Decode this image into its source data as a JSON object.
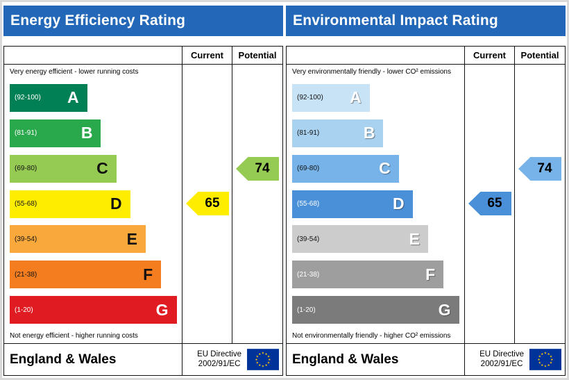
{
  "chart_data": [
    {
      "type": "bar",
      "title": "Energy Efficiency Rating",
      "categories": [
        "A",
        "B",
        "C",
        "D",
        "E",
        "F",
        "G"
      ],
      "band_ranges": [
        "92-100",
        "81-91",
        "69-80",
        "55-68",
        "39-54",
        "21-38",
        "1-20"
      ],
      "values": [
        45,
        53,
        62,
        70,
        79,
        88,
        97
      ],
      "current": 65,
      "potential": 74,
      "current_band": "D",
      "potential_band": "C",
      "xlabel": "",
      "ylabel": "",
      "legend": [
        "Current",
        "Potential"
      ]
    },
    {
      "type": "bar",
      "title": "Environmental Impact Rating",
      "categories": [
        "A",
        "B",
        "C",
        "D",
        "E",
        "F",
        "G"
      ],
      "band_ranges": [
        "92-100",
        "81-91",
        "69-80",
        "55-68",
        "39-54",
        "21-38",
        "1-20"
      ],
      "values": [
        45,
        53,
        62,
        70,
        79,
        88,
        97
      ],
      "current": 65,
      "potential": 74,
      "current_band": "D",
      "potential_band": "C",
      "xlabel": "",
      "ylabel": "",
      "legend": [
        "Current",
        "Potential"
      ]
    }
  ],
  "colors": {
    "header_bg": "#2368b8",
    "header_text": "#ffffff",
    "flag_bg": "#003399",
    "flag_star": "#ffcc00",
    "border": "#111111"
  },
  "panels": [
    {
      "title": "Energy Efficiency Rating",
      "col_current": "Current",
      "col_potential": "Potential",
      "caption_top": "Very energy efficient - lower running costs",
      "caption_bottom": "Not energy efficient - higher running costs",
      "bands": [
        {
          "letter": "A",
          "range": "(92-100)",
          "color": "#008054",
          "range_color": "#ffffff",
          "letter_color": "#ffffff",
          "width_pct": 45
        },
        {
          "letter": "B",
          "range": "(81-91)",
          "color": "#2aa84c",
          "range_color": "#ffffff",
          "letter_color": "#ffffff",
          "width_pct": 53
        },
        {
          "letter": "C",
          "range": "(69-80)",
          "color": "#95ca53",
          "range_color": "#111111",
          "letter_color": "#111111",
          "width_pct": 62
        },
        {
          "letter": "D",
          "range": "(55-68)",
          "color": "#ffed00",
          "range_color": "#111111",
          "letter_color": "#111111",
          "width_pct": 70
        },
        {
          "letter": "E",
          "range": "(39-54)",
          "color": "#f9a93c",
          "range_color": "#111111",
          "letter_color": "#111111",
          "width_pct": 79
        },
        {
          "letter": "F",
          "range": "(21-38)",
          "color": "#f47d20",
          "range_color": "#111111",
          "letter_color": "#111111",
          "width_pct": 88
        },
        {
          "letter": "G",
          "range": "(1-20)",
          "color": "#e01b22",
          "range_color": "#ffffff",
          "letter_color": "#ffffff",
          "width_pct": 97
        }
      ],
      "current": {
        "value": "65",
        "color": "#ffed00"
      },
      "potential": {
        "value": "74",
        "color": "#95ca53"
      },
      "footer": {
        "region": "England & Wales",
        "directive_line1": "EU Directive",
        "directive_line2": "2002/91/EC"
      }
    },
    {
      "title": "Environmental Impact Rating",
      "col_current": "Current",
      "col_potential": "Potential",
      "caption_top": "Very environmentally friendly - lower CO² emissions",
      "caption_bottom": "Not environmentally friendly - higher CO² emissions",
      "bands": [
        {
          "letter": "A",
          "range": "(92-100)",
          "color": "#c9e3f6",
          "range_color": "#111111",
          "letter_color": "#ffffff",
          "width_pct": 45
        },
        {
          "letter": "B",
          "range": "(81-91)",
          "color": "#a9d2f0",
          "range_color": "#111111",
          "letter_color": "#ffffff",
          "width_pct": 53
        },
        {
          "letter": "C",
          "range": "(69-80)",
          "color": "#77b3e8",
          "range_color": "#111111",
          "letter_color": "#ffffff",
          "width_pct": 62
        },
        {
          "letter": "D",
          "range": "(55-68)",
          "color": "#4a90d9",
          "range_color": "#ffffff",
          "letter_color": "#ffffff",
          "width_pct": 70
        },
        {
          "letter": "E",
          "range": "(39-54)",
          "color": "#cccccc",
          "range_color": "#111111",
          "letter_color": "#ffffff",
          "width_pct": 79
        },
        {
          "letter": "F",
          "range": "(21-38)",
          "color": "#9e9e9e",
          "range_color": "#ffffff",
          "letter_color": "#ffffff",
          "width_pct": 88
        },
        {
          "letter": "G",
          "range": "(1-20)",
          "color": "#7b7b7b",
          "range_color": "#ffffff",
          "letter_color": "#ffffff",
          "width_pct": 97
        }
      ],
      "current": {
        "value": "65",
        "color": "#4a90d9"
      },
      "potential": {
        "value": "74",
        "color": "#77b3e8"
      },
      "footer": {
        "region": "England & Wales",
        "directive_line1": "EU Directive",
        "directive_line2": "2002/91/EC"
      }
    }
  ]
}
